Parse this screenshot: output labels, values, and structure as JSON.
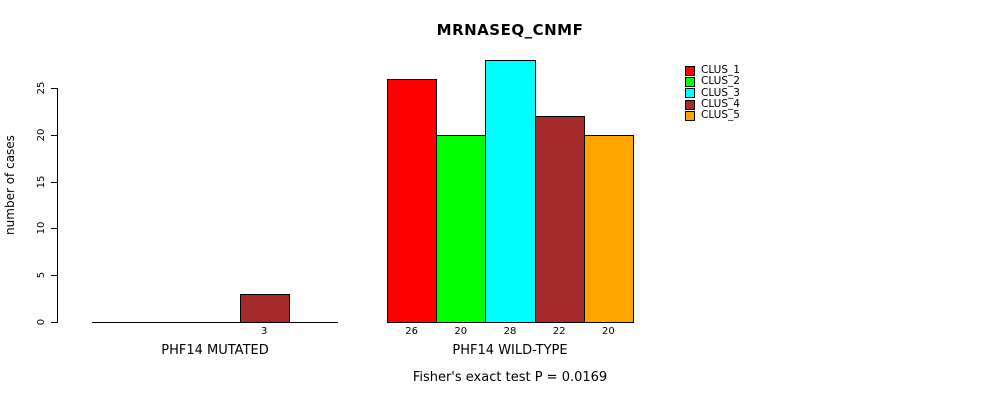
{
  "chart_data": {
    "type": "bar",
    "title": "MRNASEQ_CNMF",
    "ylabel": "number of cases",
    "xlabel": "",
    "ylim": [
      0,
      28
    ],
    "yticks": [
      0,
      5,
      10,
      15,
      20,
      25
    ],
    "grid": false,
    "legend_position": "top-right",
    "categories": [
      "PHF14 MUTATED",
      "PHF14 WILD-TYPE"
    ],
    "series": [
      {
        "name": "CLUS_1",
        "color": "#FF0000",
        "values": [
          0,
          26
        ]
      },
      {
        "name": "CLUS_2",
        "color": "#00FF00",
        "values": [
          0,
          20
        ]
      },
      {
        "name": "CLUS_3",
        "color": "#00FFFF",
        "values": [
          0,
          28
        ]
      },
      {
        "name": "CLUS_4",
        "color": "#A52A2A",
        "values": [
          3,
          22
        ]
      },
      {
        "name": "CLUS_5",
        "color": "#FFA500",
        "values": [
          0,
          20
        ]
      }
    ],
    "bar_value_labels": {
      "PHF14 MUTATED": [
        "",
        "",
        "",
        "3",
        ""
      ],
      "PHF14 WILD-TYPE": [
        "26",
        "20",
        "28",
        "22",
        "20"
      ]
    },
    "annotation": "Fisher's exact test P = 0.0169"
  }
}
